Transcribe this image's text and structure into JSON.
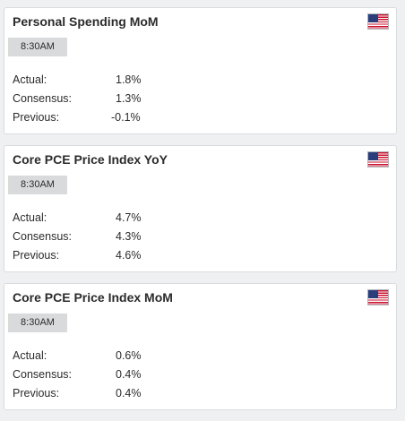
{
  "events": [
    {
      "title": "Personal Spending MoM",
      "time": "8:30AM",
      "flag": "us-flag-icon",
      "actual_label": "Actual:",
      "actual": "1.8%",
      "consensus_label": "Consensus:",
      "consensus": "1.3%",
      "previous_label": "Previous:",
      "previous": "-0.1%"
    },
    {
      "title": "Core PCE Price Index YoY",
      "time": "8:30AM",
      "flag": "us-flag-icon",
      "actual_label": "Actual:",
      "actual": "4.7%",
      "consensus_label": "Consensus:",
      "consensus": "4.3%",
      "previous_label": "Previous:",
      "previous": "4.6%"
    },
    {
      "title": "Core PCE Price Index MoM",
      "time": "8:30AM",
      "flag": "us-flag-icon",
      "actual_label": "Actual:",
      "actual": "0.6%",
      "consensus_label": "Consensus:",
      "consensus": "0.4%",
      "previous_label": "Previous:",
      "previous": "0.4%"
    }
  ],
  "colors": {
    "background": "#eef0f2",
    "card": "#ffffff",
    "badge": "#d9dadb",
    "text": "#2b2b2b"
  }
}
